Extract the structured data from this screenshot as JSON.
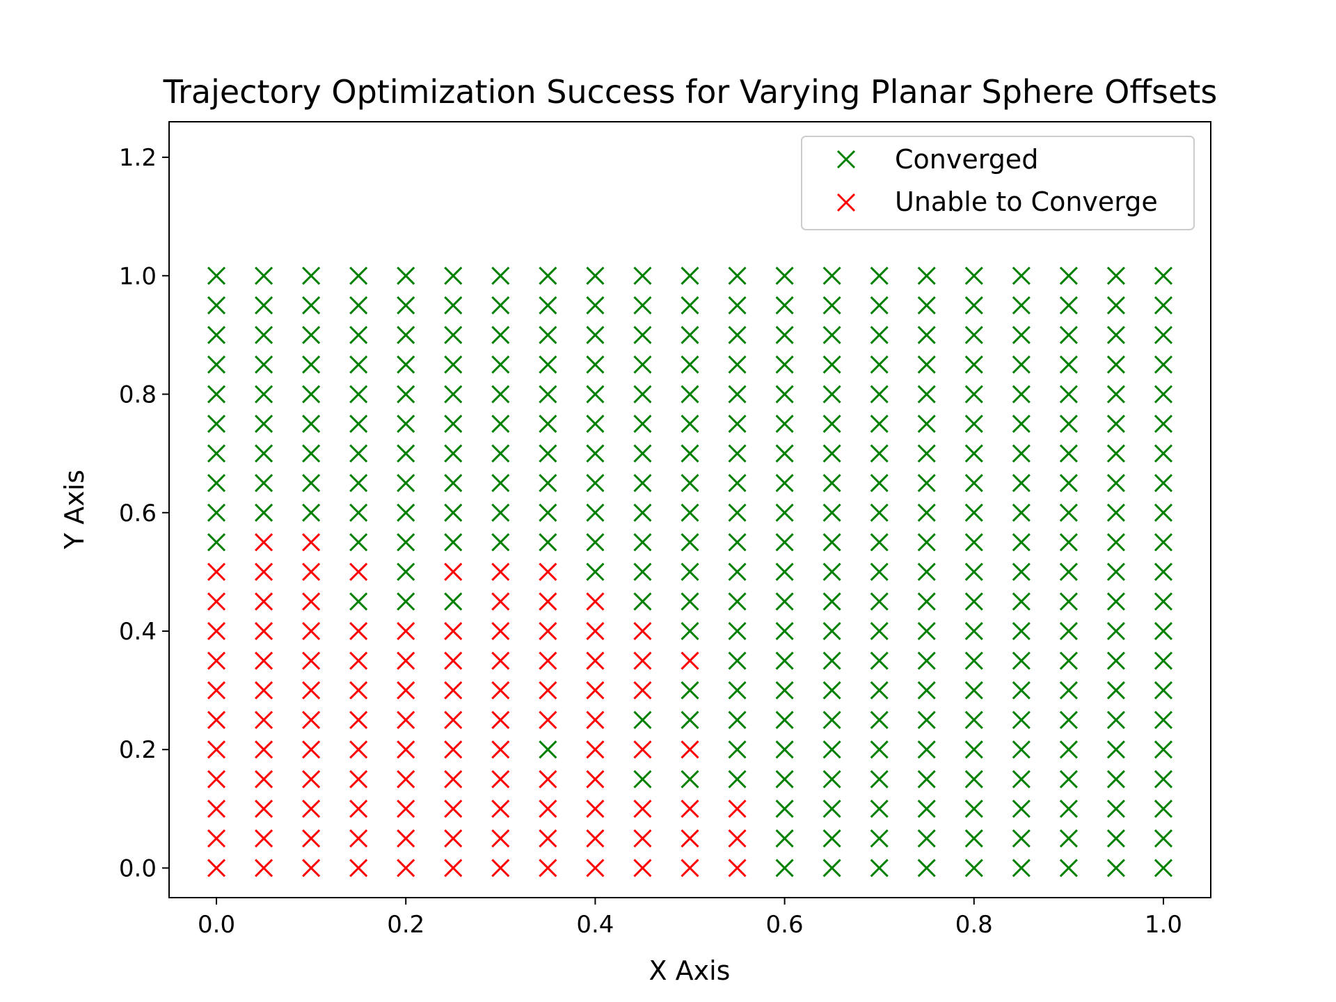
{
  "chart_data": {
    "type": "scatter",
    "title": "Trajectory Optimization Success for Varying Planar Sphere Offsets",
    "xlabel": "X Axis",
    "ylabel": "Y Axis",
    "xlim": [
      -0.05,
      1.05
    ],
    "ylim": [
      -0.05,
      1.26
    ],
    "xticks": [
      0.0,
      0.2,
      0.4,
      0.6,
      0.8,
      1.0
    ],
    "yticks": [
      0.0,
      0.2,
      0.4,
      0.6,
      0.8,
      1.0,
      1.2
    ],
    "xtick_labels": [
      "0.0",
      "0.2",
      "0.4",
      "0.6",
      "0.8",
      "1.0"
    ],
    "ytick_labels": [
      "0.0",
      "0.2",
      "0.4",
      "0.6",
      "0.8",
      "1.0",
      "1.2"
    ],
    "grid": false,
    "legend_position": "top-right",
    "grid_x": [
      0.0,
      0.05,
      0.1,
      0.15,
      0.2,
      0.25,
      0.3,
      0.35,
      0.4,
      0.45,
      0.5,
      0.55,
      0.6,
      0.65,
      0.7,
      0.75,
      0.8,
      0.85,
      0.9,
      0.95,
      1.0
    ],
    "grid_y": [
      0.0,
      0.05,
      0.1,
      0.15,
      0.2,
      0.25,
      0.3,
      0.35,
      0.4,
      0.45,
      0.5,
      0.55,
      0.6,
      0.65,
      0.7,
      0.75,
      0.8,
      0.85,
      0.9,
      0.95,
      1.0
    ],
    "series": [
      {
        "name": "Converged",
        "color": "#008000",
        "marker": "x"
      },
      {
        "name": "Unable to Converge",
        "color": "#ff0000",
        "marker": "x"
      }
    ],
    "unable_to_converge_points": [
      [
        0.05,
        0.55
      ],
      [
        0.1,
        0.55
      ],
      [
        0.0,
        0.5
      ],
      [
        0.05,
        0.5
      ],
      [
        0.1,
        0.5
      ],
      [
        0.15,
        0.5
      ],
      [
        0.25,
        0.5
      ],
      [
        0.3,
        0.5
      ],
      [
        0.35,
        0.5
      ],
      [
        0.0,
        0.45
      ],
      [
        0.05,
        0.45
      ],
      [
        0.1,
        0.45
      ],
      [
        0.3,
        0.45
      ],
      [
        0.35,
        0.45
      ],
      [
        0.4,
        0.45
      ],
      [
        0.0,
        0.4
      ],
      [
        0.05,
        0.4
      ],
      [
        0.1,
        0.4
      ],
      [
        0.15,
        0.4
      ],
      [
        0.2,
        0.4
      ],
      [
        0.25,
        0.4
      ],
      [
        0.3,
        0.4
      ],
      [
        0.35,
        0.4
      ],
      [
        0.4,
        0.4
      ],
      [
        0.45,
        0.4
      ],
      [
        0.0,
        0.35
      ],
      [
        0.05,
        0.35
      ],
      [
        0.1,
        0.35
      ],
      [
        0.15,
        0.35
      ],
      [
        0.2,
        0.35
      ],
      [
        0.25,
        0.35
      ],
      [
        0.3,
        0.35
      ],
      [
        0.35,
        0.35
      ],
      [
        0.4,
        0.35
      ],
      [
        0.45,
        0.35
      ],
      [
        0.5,
        0.35
      ],
      [
        0.0,
        0.3
      ],
      [
        0.05,
        0.3
      ],
      [
        0.1,
        0.3
      ],
      [
        0.15,
        0.3
      ],
      [
        0.2,
        0.3
      ],
      [
        0.25,
        0.3
      ],
      [
        0.3,
        0.3
      ],
      [
        0.35,
        0.3
      ],
      [
        0.4,
        0.3
      ],
      [
        0.45,
        0.3
      ],
      [
        0.0,
        0.25
      ],
      [
        0.05,
        0.25
      ],
      [
        0.1,
        0.25
      ],
      [
        0.15,
        0.25
      ],
      [
        0.2,
        0.25
      ],
      [
        0.25,
        0.25
      ],
      [
        0.3,
        0.25
      ],
      [
        0.35,
        0.25
      ],
      [
        0.4,
        0.25
      ],
      [
        0.0,
        0.2
      ],
      [
        0.05,
        0.2
      ],
      [
        0.1,
        0.2
      ],
      [
        0.15,
        0.2
      ],
      [
        0.2,
        0.2
      ],
      [
        0.25,
        0.2
      ],
      [
        0.3,
        0.2
      ],
      [
        0.4,
        0.2
      ],
      [
        0.45,
        0.2
      ],
      [
        0.5,
        0.2
      ],
      [
        0.0,
        0.15
      ],
      [
        0.05,
        0.15
      ],
      [
        0.1,
        0.15
      ],
      [
        0.15,
        0.15
      ],
      [
        0.2,
        0.15
      ],
      [
        0.25,
        0.15
      ],
      [
        0.3,
        0.15
      ],
      [
        0.35,
        0.15
      ],
      [
        0.4,
        0.15
      ],
      [
        0.0,
        0.1
      ],
      [
        0.05,
        0.1
      ],
      [
        0.1,
        0.1
      ],
      [
        0.15,
        0.1
      ],
      [
        0.2,
        0.1
      ],
      [
        0.25,
        0.1
      ],
      [
        0.3,
        0.1
      ],
      [
        0.35,
        0.1
      ],
      [
        0.4,
        0.1
      ],
      [
        0.45,
        0.1
      ],
      [
        0.5,
        0.1
      ],
      [
        0.55,
        0.1
      ],
      [
        0.0,
        0.05
      ],
      [
        0.05,
        0.05
      ],
      [
        0.1,
        0.05
      ],
      [
        0.15,
        0.05
      ],
      [
        0.2,
        0.05
      ],
      [
        0.25,
        0.05
      ],
      [
        0.3,
        0.05
      ],
      [
        0.35,
        0.05
      ],
      [
        0.4,
        0.05
      ],
      [
        0.45,
        0.05
      ],
      [
        0.5,
        0.05
      ],
      [
        0.55,
        0.05
      ],
      [
        0.0,
        0.0
      ],
      [
        0.05,
        0.0
      ],
      [
        0.1,
        0.0
      ],
      [
        0.15,
        0.0
      ],
      [
        0.2,
        0.0
      ],
      [
        0.25,
        0.0
      ],
      [
        0.3,
        0.0
      ],
      [
        0.35,
        0.0
      ],
      [
        0.4,
        0.0
      ],
      [
        0.45,
        0.0
      ],
      [
        0.5,
        0.0
      ],
      [
        0.55,
        0.0
      ]
    ]
  }
}
